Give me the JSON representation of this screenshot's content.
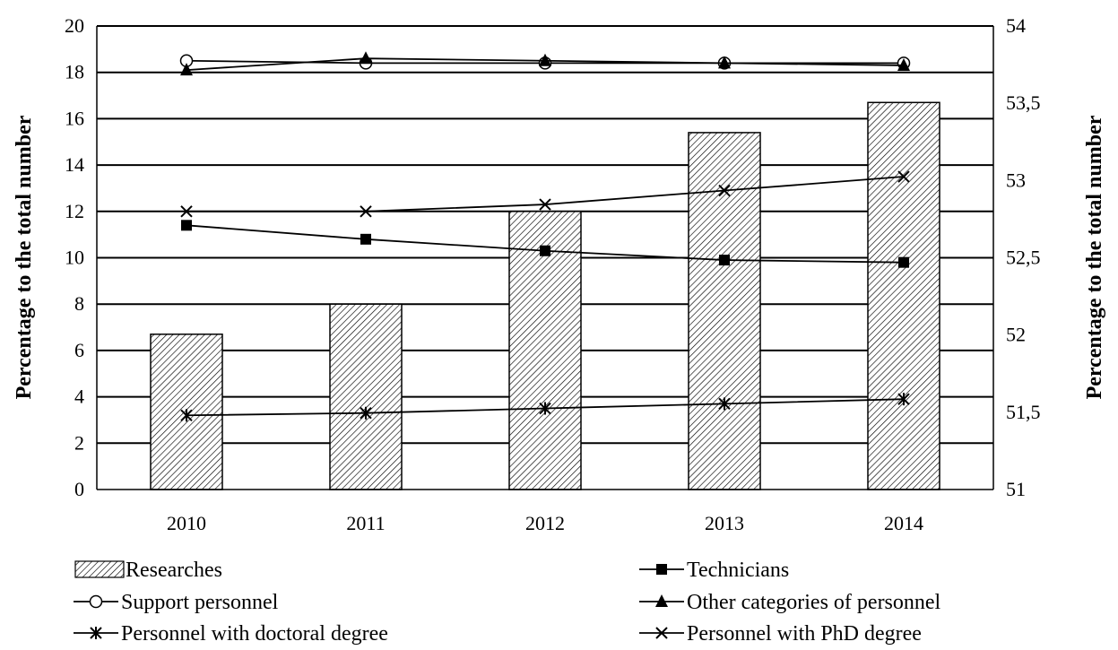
{
  "chart_data": {
    "type": "bar",
    "categories": [
      "2010",
      "2011",
      "2012",
      "2013",
      "2014"
    ],
    "ylabel_left": "Percentage to the total number",
    "ylabel_right": "Percentage to the total number",
    "y_left": {
      "range": [
        0,
        20
      ],
      "ticks": [
        "0",
        "2",
        "4",
        "6",
        "8",
        "10",
        "12",
        "14",
        "16",
        "18",
        "20"
      ]
    },
    "y_right": {
      "range": [
        51,
        54
      ],
      "ticks": [
        "51",
        "51,5",
        "52",
        "52,5",
        "53",
        "53,5",
        "54"
      ]
    },
    "grid": true,
    "legend_position": "bottom",
    "series": [
      {
        "name": "Researches",
        "kind": "bar",
        "axis": "left",
        "pattern": "diagonal-hatch",
        "values": [
          6.7,
          8.0,
          12.0,
          15.4,
          16.7
        ]
      },
      {
        "name": "Technicians",
        "kind": "line",
        "axis": "left",
        "marker": "square-filled",
        "values": [
          11.4,
          10.8,
          10.3,
          9.9,
          9.8
        ]
      },
      {
        "name": "Support personnel",
        "kind": "line",
        "axis": "left",
        "marker": "circle-open",
        "values": [
          18.5,
          18.4,
          18.4,
          18.4,
          18.4
        ]
      },
      {
        "name": "Other categories of personnel",
        "kind": "line",
        "axis": "left",
        "marker": "triangle-filled",
        "values": [
          18.1,
          18.6,
          18.5,
          18.4,
          18.3
        ]
      },
      {
        "name": "Personnel with doctoral degree",
        "kind": "line",
        "axis": "left",
        "marker": "asterisk",
        "values": [
          3.2,
          3.3,
          3.5,
          3.7,
          3.9
        ]
      },
      {
        "name": "Personnel with PhD degree",
        "kind": "line",
        "axis": "left",
        "marker": "x",
        "values": [
          12.0,
          12.0,
          12.3,
          12.9,
          13.5
        ]
      }
    ]
  }
}
